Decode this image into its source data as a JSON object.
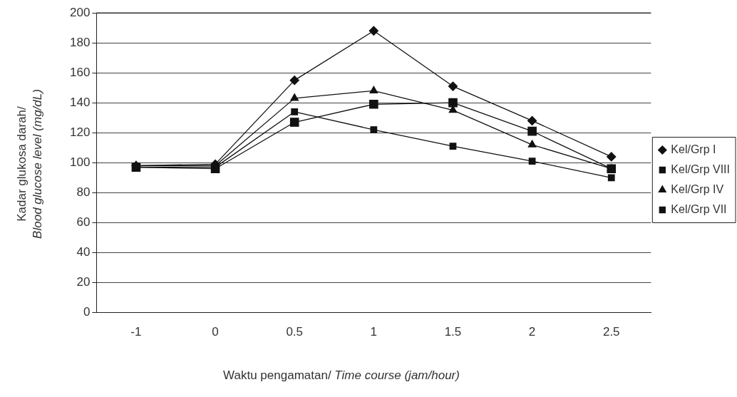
{
  "chart_data": {
    "type": "line",
    "xlabel": "Waktu pengamatan/ Time course (jam/hour)",
    "ylabel": "Kadar glukosa darah/\nBlood glucose level (mg/dL)",
    "categories": [
      "-1",
      "0",
      "0.5",
      "1",
      "1.5",
      "2",
      "2.5"
    ],
    "series": [
      {
        "name": "Kel/Grp I",
        "color": "#111111",
        "marker": "diamond",
        "values": [
          98,
          99,
          155,
          188,
          151,
          128,
          104
        ]
      },
      {
        "name": "Kel/Grp VIII",
        "color": "#111111",
        "marker": "square",
        "values": [
          97,
          97,
          134,
          122,
          111,
          101,
          90
        ]
      },
      {
        "name": "Kel/Grp IV",
        "color": "#111111",
        "marker": "triangle",
        "values": [
          98,
          98,
          143,
          148,
          135,
          112,
          96
        ]
      },
      {
        "name": "Kel/Grp VII",
        "color": "#111111",
        "marker": "square",
        "values": [
          97,
          96,
          127,
          139,
          140,
          121,
          96
        ]
      }
    ],
    "ylim": [
      0,
      200
    ],
    "yticks": [
      0,
      20,
      40,
      60,
      80,
      100,
      120,
      140,
      160,
      180,
      200
    ],
    "grid": "y",
    "legend": "right",
    "line_style": "solid"
  }
}
